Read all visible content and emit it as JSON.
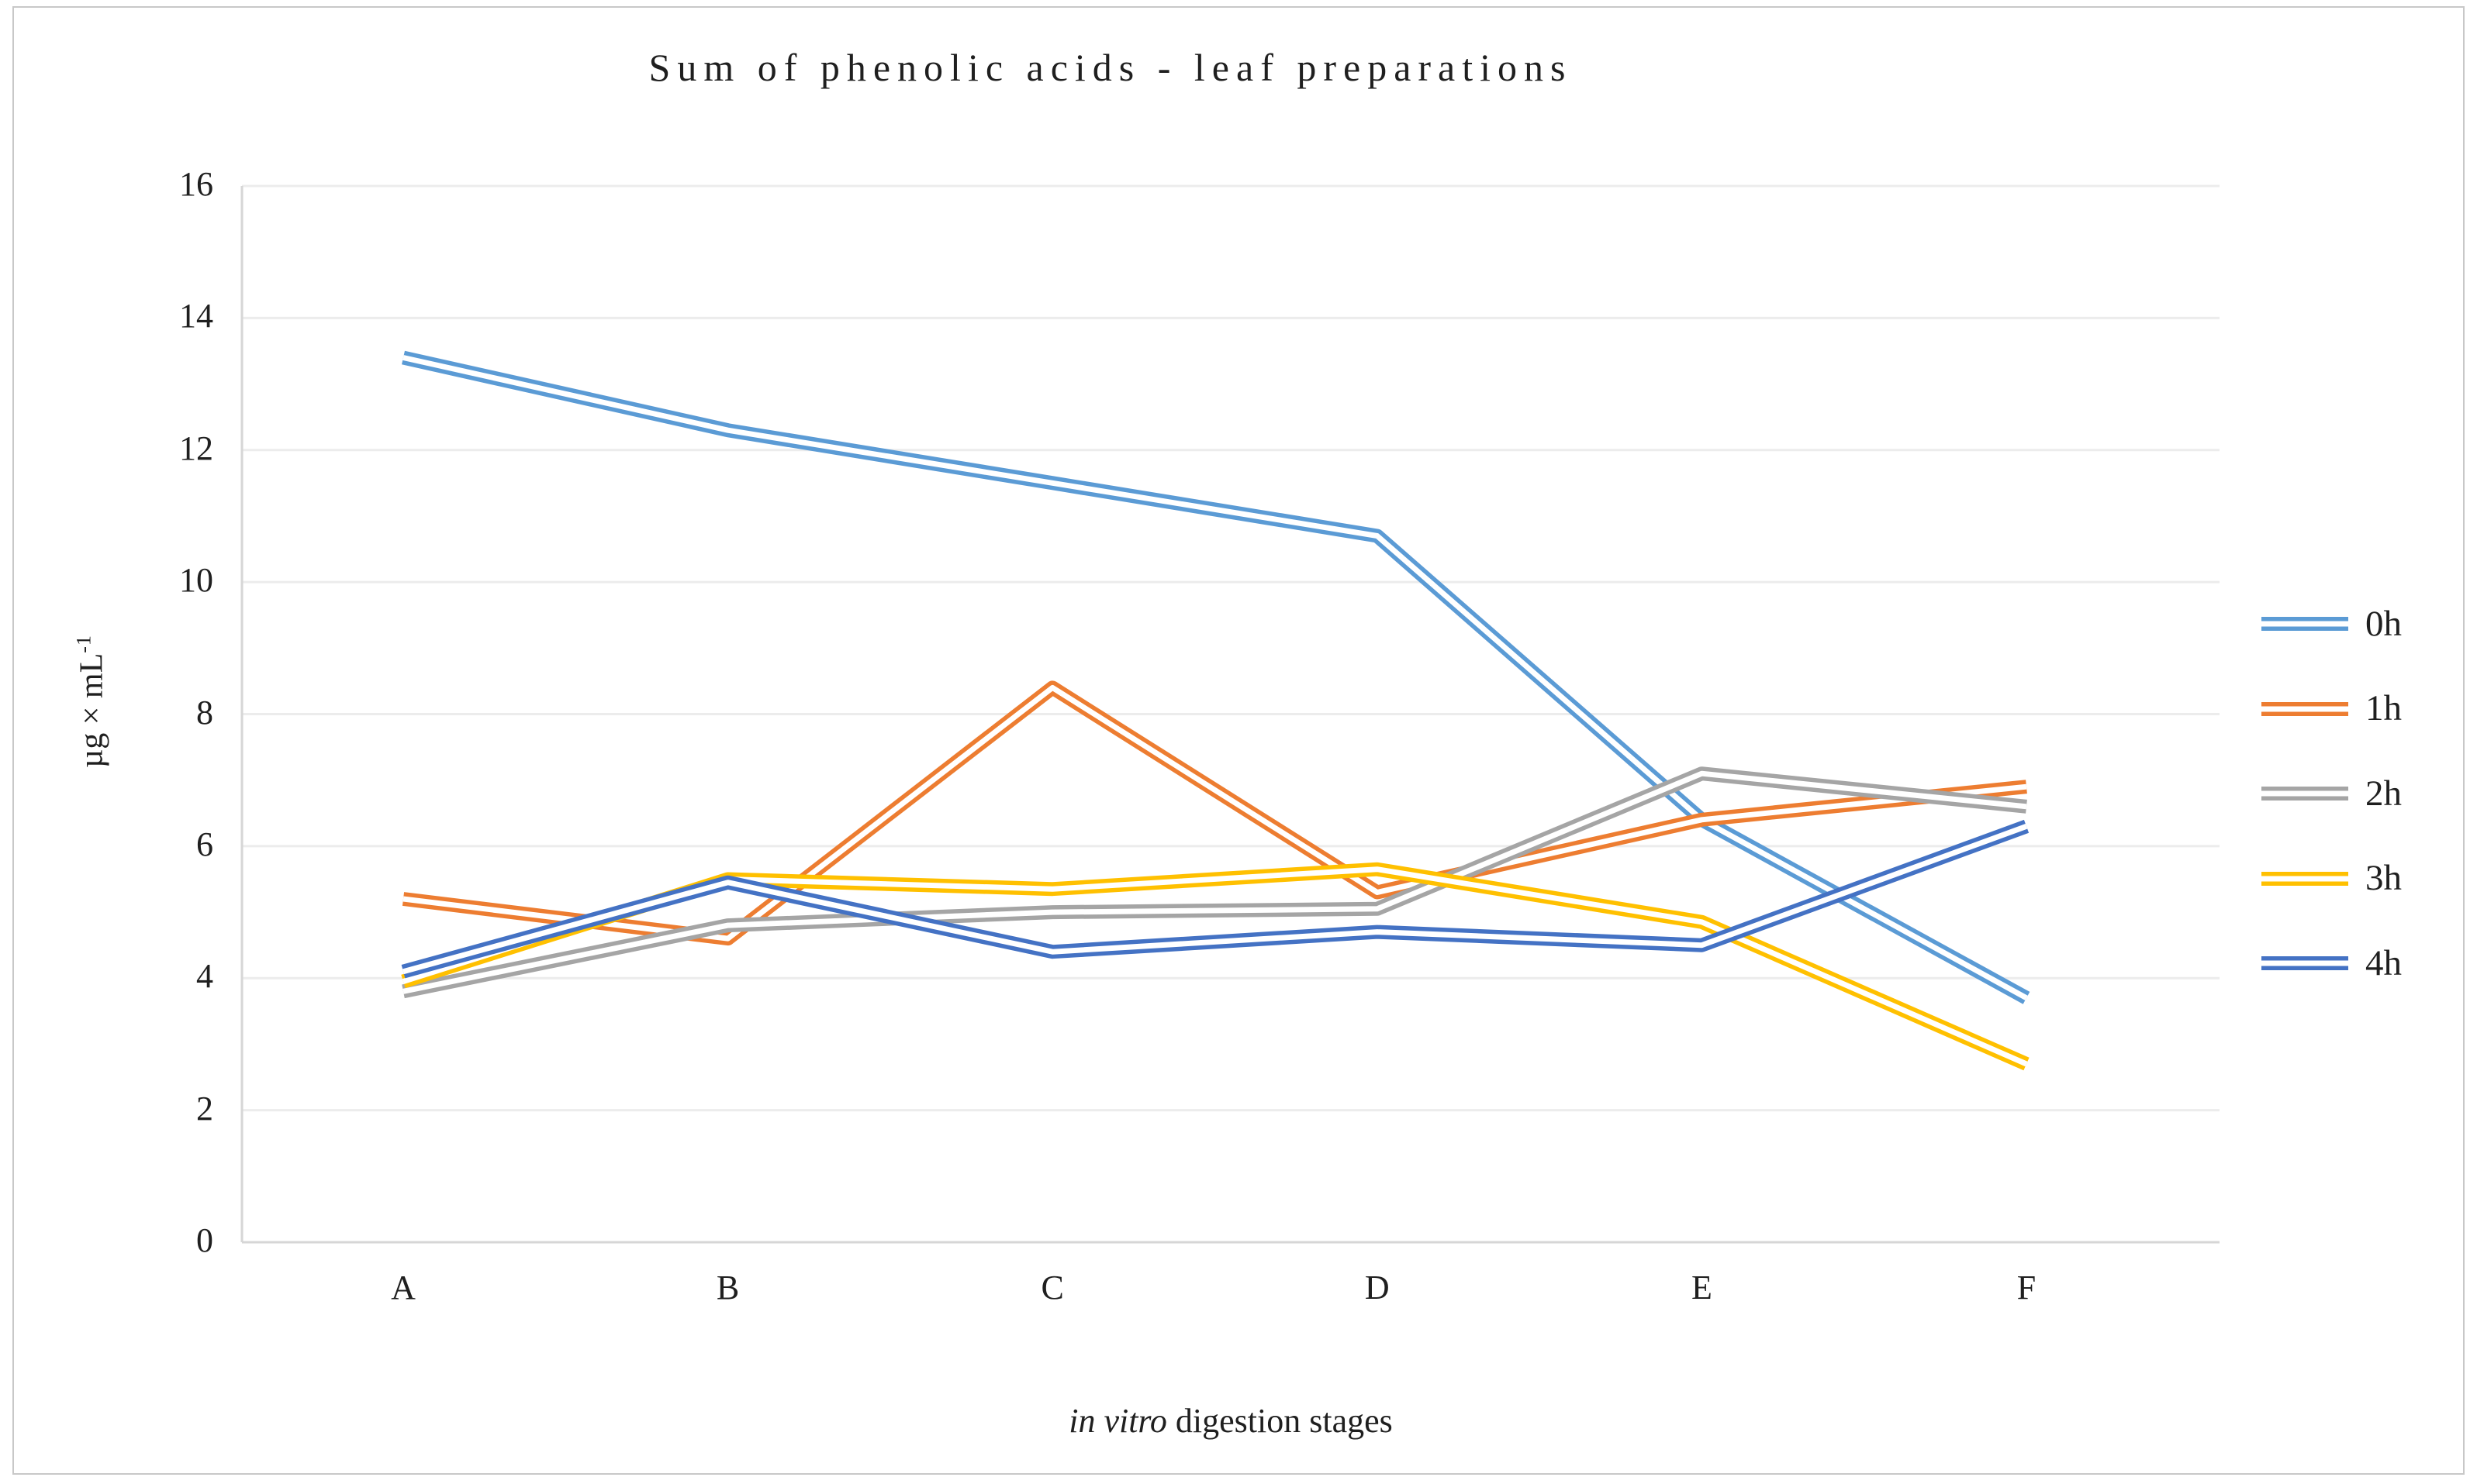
{
  "figure": {
    "background": "#ffffff",
    "frame_color": "#c8c8c8",
    "gridline_color": "#ececec",
    "axis_line_color": "#d6d6d6",
    "text_color": "#1f1f1f"
  },
  "chart_data": {
    "type": "line",
    "title": "Sum of phenolic acids - leaf preparations",
    "categories": [
      "A",
      "B",
      "C",
      "D",
      "E",
      "F"
    ],
    "series": [
      {
        "name": "0h",
        "color": "#5B9BD5",
        "values": [
          13.4,
          12.3,
          11.5,
          10.7,
          6.4,
          3.7
        ]
      },
      {
        "name": "1h",
        "color": "#ED7D31",
        "values": [
          5.2,
          4.6,
          8.4,
          5.3,
          6.4,
          6.9
        ]
      },
      {
        "name": "2h",
        "color": "#A5A5A5",
        "values": [
          3.8,
          4.8,
          5.0,
          5.05,
          7.1,
          6.6
        ]
      },
      {
        "name": "3h",
        "color": "#FFC000",
        "values": [
          3.95,
          5.5,
          5.35,
          5.65,
          4.85,
          2.7
        ]
      },
      {
        "name": "4h",
        "color": "#4472C4",
        "values": [
          4.1,
          5.45,
          4.4,
          4.7,
          4.5,
          6.3
        ]
      }
    ],
    "xlabel_italic": "in vitro",
    "xlabel_rest": " digestion stages",
    "ylabel": "µg × mL",
    "ylabel_superscript": "-1",
    "ylim": [
      0,
      16
    ],
    "yticks": [
      0,
      2,
      4,
      6,
      8,
      10,
      12,
      14,
      16
    ],
    "grid": true,
    "legend_position": "right",
    "line_style": "double"
  }
}
